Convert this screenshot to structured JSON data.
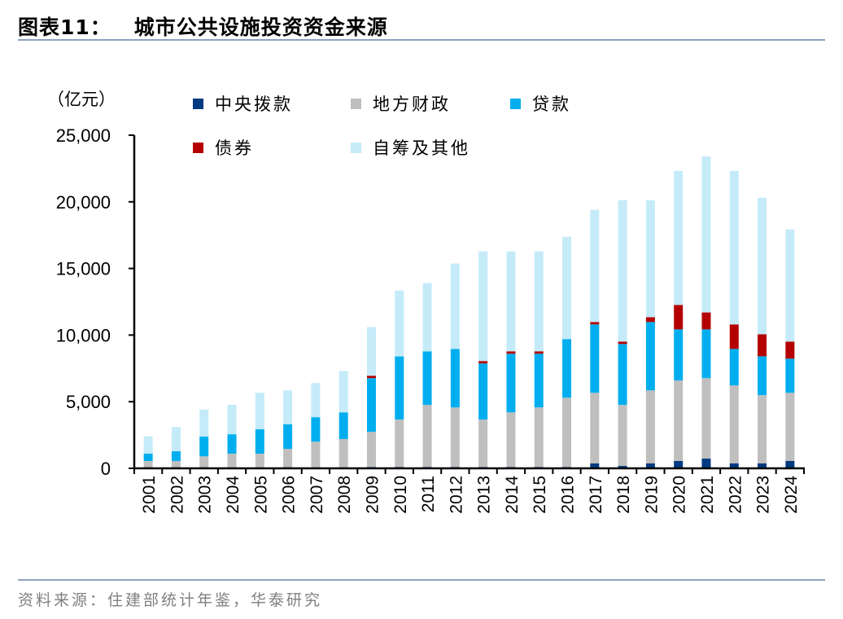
{
  "header": {
    "figure_label": "图表11：",
    "title": "城市公共设施投资资金来源"
  },
  "footer": {
    "source": "资料来源：住建部统计年鉴，华泰研究"
  },
  "chart_data": {
    "type": "bar",
    "stacked": true,
    "title": "城市公共设施投资资金来源",
    "ylabel": "（亿元）",
    "xlabel": "",
    "ylim": [
      0,
      25000
    ],
    "yticks": [
      0,
      5000,
      10000,
      15000,
      20000,
      25000
    ],
    "ytick_labels": [
      "0",
      "5,000",
      "10,000",
      "15,000",
      "20,000",
      "25,000"
    ],
    "grid": false,
    "legend_position": "top",
    "categories": [
      "2001",
      "2002",
      "2003",
      "2004",
      "2005",
      "2006",
      "2007",
      "2008",
      "2009",
      "2010",
      "2011",
      "2012",
      "2013",
      "2014",
      "2015",
      "2016",
      "2017",
      "2018",
      "2019",
      "2020",
      "2021",
      "2022",
      "2023",
      "2024"
    ],
    "series": [
      {
        "name": "中央拨款",
        "color": "#003A80",
        "values": [
          80,
          80,
          80,
          60,
          60,
          80,
          50,
          50,
          100,
          100,
          100,
          100,
          100,
          100,
          100,
          100,
          370,
          180,
          370,
          550,
          730,
          370,
          370,
          550
        ]
      },
      {
        "name": "地方财政",
        "color": "#BFBFBF",
        "values": [
          470,
          470,
          820,
          1040,
          1040,
          1380,
          1950,
          2150,
          2640,
          3560,
          4660,
          4470,
          3560,
          4100,
          4470,
          5200,
          5300,
          4580,
          5480,
          6040,
          6040,
          5850,
          5120,
          5120
        ]
      },
      {
        "name": "贷款",
        "color": "#00AEEF",
        "values": [
          550,
          730,
          1480,
          1460,
          1830,
          1840,
          1840,
          2000,
          4030,
          4740,
          4020,
          4390,
          4210,
          4400,
          4030,
          4400,
          5130,
          4570,
          5130,
          3840,
          3660,
          2740,
          2920,
          2560
        ]
      },
      {
        "name": "债券",
        "color": "#B40000",
        "values": [
          0,
          0,
          0,
          0,
          0,
          0,
          0,
          0,
          180,
          0,
          0,
          0,
          180,
          180,
          180,
          0,
          180,
          180,
          360,
          1830,
          1270,
          1840,
          1650,
          1280
        ]
      },
      {
        "name": "自筹及其他",
        "color": "#C5EBF9",
        "values": [
          1300,
          1820,
          2020,
          2200,
          2740,
          2550,
          2560,
          3100,
          3650,
          4950,
          5120,
          6410,
          8230,
          7500,
          7500,
          7680,
          8420,
          10610,
          8780,
          10060,
          11700,
          11520,
          10240,
          8420
        ]
      }
    ]
  }
}
